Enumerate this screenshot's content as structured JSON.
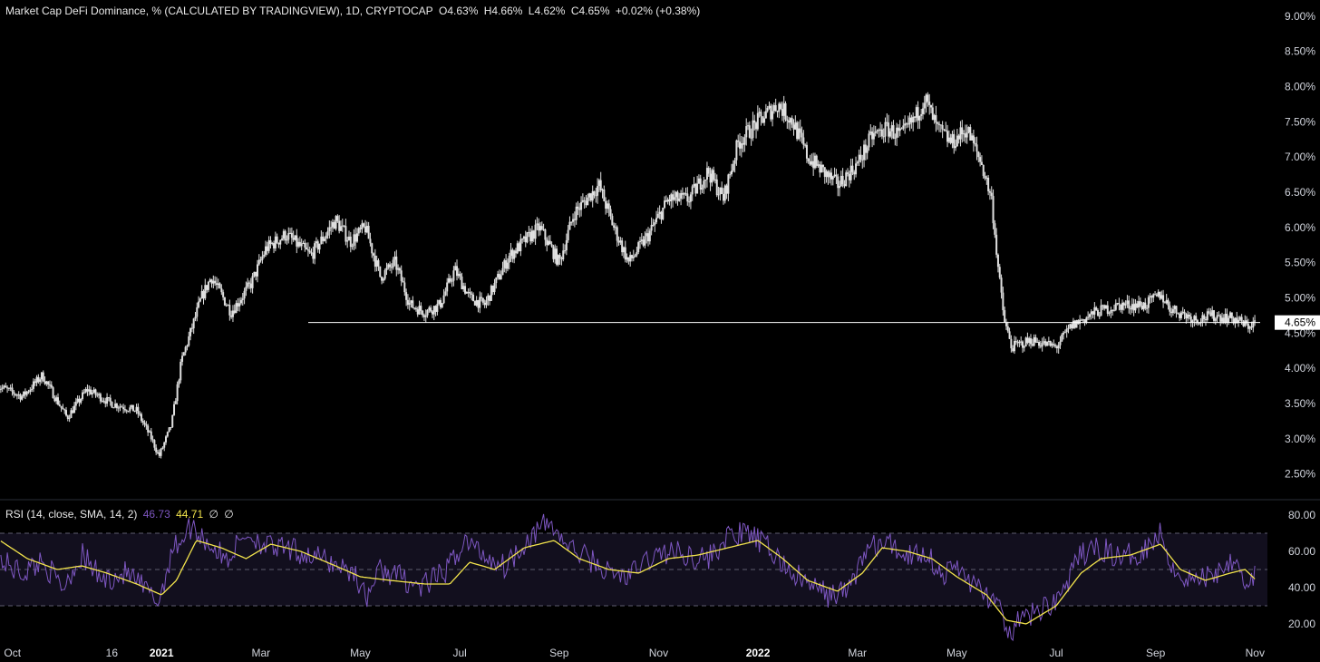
{
  "main_legend": {
    "title": "Market Cap DeFi Dominance, % (CALCULATED BY TRADINGVIEW), 1D, CRYPTOCAP",
    "open": "O4.63%",
    "high": "H4.66%",
    "low": "L4.62%",
    "close": "C4.65%",
    "change": "+0.02% (+0.38%)"
  },
  "rsi_legend": {
    "title": "RSI (14, close, SMA, 14, 2)",
    "rsi": "46.73",
    "sma": "44.71",
    "extra1": "∅",
    "extra2": "∅"
  },
  "colors": {
    "background": "#000000",
    "candles": "#e0e0e0",
    "price_line": "#ffffff",
    "rsi": "#7e57c2",
    "rsi_sma": "#f2e34c",
    "rsi_band": "#120f1e"
  },
  "chart_data": [
    {
      "type": "candlestick",
      "title": "Market Cap DeFi Dominance, %",
      "unit": "%",
      "ylim": [
        2.2,
        9.1
      ],
      "y_ticks": [
        "9.00%",
        "8.50%",
        "8.00%",
        "7.50%",
        "7.00%",
        "6.50%",
        "6.00%",
        "5.50%",
        "5.00%",
        "4.50%",
        "4.00%",
        "3.50%",
        "3.00%",
        "2.50%"
      ],
      "y_tick_values": [
        9.0,
        8.5,
        8.0,
        7.5,
        7.0,
        6.5,
        6.0,
        5.5,
        5.0,
        4.5,
        4.0,
        3.5,
        3.0,
        2.5
      ],
      "last_price": 4.65,
      "last_price_label": "4.65%",
      "x_ticks": [
        "Oct",
        "16",
        "2021",
        "Mar",
        "May",
        "Jul",
        "Sep",
        "Nov",
        "2022",
        "Mar",
        "May",
        "Jul",
        "Sep",
        "Nov"
      ],
      "x_tick_months": [
        0,
        2,
        3,
        5,
        7,
        9,
        11,
        13,
        15,
        17,
        19,
        21,
        23,
        25
      ],
      "x_range_months": [
        -0.25,
        25.25
      ],
      "series_anchors": [
        {
          "x": -2.2,
          "y": 4.0
        },
        {
          "x": -1.6,
          "y": 4.5
        },
        {
          "x": -0.8,
          "y": 3.9
        },
        {
          "x": 0.2,
          "y": 3.6
        },
        {
          "x": 0.6,
          "y": 3.9
        },
        {
          "x": 1.1,
          "y": 3.3
        },
        {
          "x": 1.5,
          "y": 3.7
        },
        {
          "x": 2.0,
          "y": 3.5
        },
        {
          "x": 2.5,
          "y": 3.4
        },
        {
          "x": 2.8,
          "y": 3.0
        },
        {
          "x": 2.95,
          "y": 2.75
        },
        {
          "x": 3.2,
          "y": 3.2
        },
        {
          "x": 3.4,
          "y": 4.1
        },
        {
          "x": 3.8,
          "y": 5.0
        },
        {
          "x": 4.0,
          "y": 5.3
        },
        {
          "x": 4.4,
          "y": 4.8
        },
        {
          "x": 4.8,
          "y": 5.2
        },
        {
          "x": 5.1,
          "y": 5.7
        },
        {
          "x": 5.5,
          "y": 5.9
        },
        {
          "x": 6.0,
          "y": 5.6
        },
        {
          "x": 6.5,
          "y": 6.1
        },
        {
          "x": 6.8,
          "y": 5.8
        },
        {
          "x": 7.1,
          "y": 6.0
        },
        {
          "x": 7.4,
          "y": 5.3
        },
        {
          "x": 7.7,
          "y": 5.5
        },
        {
          "x": 8.0,
          "y": 4.9
        },
        {
          "x": 8.3,
          "y": 4.8
        },
        {
          "x": 8.6,
          "y": 4.9
        },
        {
          "x": 8.9,
          "y": 5.4
        },
        {
          "x": 9.2,
          "y": 5.0
        },
        {
          "x": 9.5,
          "y": 4.9
        },
        {
          "x": 10.0,
          "y": 5.6
        },
        {
          "x": 10.6,
          "y": 6.0
        },
        {
          "x": 11.0,
          "y": 5.5
        },
        {
          "x": 11.3,
          "y": 6.2
        },
        {
          "x": 11.8,
          "y": 6.6
        },
        {
          "x": 12.1,
          "y": 6.0
        },
        {
          "x": 12.4,
          "y": 5.5
        },
        {
          "x": 12.8,
          "y": 5.9
        },
        {
          "x": 13.2,
          "y": 6.4
        },
        {
          "x": 13.6,
          "y": 6.4
        },
        {
          "x": 14.0,
          "y": 6.8
        },
        {
          "x": 14.3,
          "y": 6.4
        },
        {
          "x": 14.6,
          "y": 7.2
        },
        {
          "x": 15.0,
          "y": 7.5
        },
        {
          "x": 15.4,
          "y": 7.75
        },
        {
          "x": 15.7,
          "y": 7.5
        },
        {
          "x": 16.0,
          "y": 7.0
        },
        {
          "x": 16.3,
          "y": 6.8
        },
        {
          "x": 16.6,
          "y": 6.6
        },
        {
          "x": 17.0,
          "y": 6.9
        },
        {
          "x": 17.3,
          "y": 7.3
        },
        {
          "x": 17.6,
          "y": 7.4
        },
        {
          "x": 17.9,
          "y": 7.3
        },
        {
          "x": 18.2,
          "y": 7.6
        },
        {
          "x": 18.35,
          "y": 7.85
        },
        {
          "x": 18.6,
          "y": 7.4
        },
        {
          "x": 18.9,
          "y": 7.2
        },
        {
          "x": 19.2,
          "y": 7.4
        },
        {
          "x": 19.5,
          "y": 6.9
        },
        {
          "x": 19.7,
          "y": 6.4
        },
        {
          "x": 19.85,
          "y": 5.3
        },
        {
          "x": 19.95,
          "y": 4.7
        },
        {
          "x": 20.1,
          "y": 4.3
        },
        {
          "x": 20.5,
          "y": 4.4
        },
        {
          "x": 21.0,
          "y": 4.3
        },
        {
          "x": 21.3,
          "y": 4.6
        },
        {
          "x": 21.8,
          "y": 4.8
        },
        {
          "x": 22.3,
          "y": 4.9
        },
        {
          "x": 22.8,
          "y": 4.9
        },
        {
          "x": 23.1,
          "y": 5.05
        },
        {
          "x": 23.3,
          "y": 4.85
        },
        {
          "x": 23.8,
          "y": 4.7
        },
        {
          "x": 24.2,
          "y": 4.75
        },
        {
          "x": 24.6,
          "y": 4.7
        },
        {
          "x": 24.85,
          "y": 4.6
        },
        {
          "x": 25.0,
          "y": 4.65
        }
      ]
    },
    {
      "type": "line",
      "title": "RSI (14, close, SMA, 14, 2)",
      "ylim": [
        8,
        86
      ],
      "y_ticks": [
        "80.00",
        "60.00",
        "40.00",
        "20.00"
      ],
      "y_tick_values": [
        80,
        60,
        40,
        20
      ],
      "bands": [
        30,
        50,
        70
      ],
      "series": [
        {
          "name": "RSI",
          "last_value": 46.73,
          "anchors": [
            {
              "x": -0.25,
              "y": 55
            },
            {
              "x": 0.2,
              "y": 48
            },
            {
              "x": 0.6,
              "y": 55
            },
            {
              "x": 1.0,
              "y": 40
            },
            {
              "x": 1.4,
              "y": 58
            },
            {
              "x": 1.8,
              "y": 44
            },
            {
              "x": 2.3,
              "y": 48
            },
            {
              "x": 2.7,
              "y": 38
            },
            {
              "x": 2.95,
              "y": 32
            },
            {
              "x": 3.2,
              "y": 60
            },
            {
              "x": 3.6,
              "y": 74
            },
            {
              "x": 3.9,
              "y": 66
            },
            {
              "x": 4.3,
              "y": 55
            },
            {
              "x": 4.7,
              "y": 70
            },
            {
              "x": 5.2,
              "y": 62
            },
            {
              "x": 5.7,
              "y": 60
            },
            {
              "x": 6.2,
              "y": 56
            },
            {
              "x": 6.6,
              "y": 52
            },
            {
              "x": 6.9,
              "y": 48
            },
            {
              "x": 7.1,
              "y": 34
            },
            {
              "x": 7.4,
              "y": 50
            },
            {
              "x": 7.8,
              "y": 46
            },
            {
              "x": 8.2,
              "y": 40
            },
            {
              "x": 8.7,
              "y": 48
            },
            {
              "x": 9.1,
              "y": 66
            },
            {
              "x": 9.5,
              "y": 58
            },
            {
              "x": 9.9,
              "y": 52
            },
            {
              "x": 10.4,
              "y": 68
            },
            {
              "x": 10.8,
              "y": 76
            },
            {
              "x": 11.2,
              "y": 62
            },
            {
              "x": 11.6,
              "y": 56
            },
            {
              "x": 12.0,
              "y": 48
            },
            {
              "x": 12.4,
              "y": 46
            },
            {
              "x": 12.8,
              "y": 56
            },
            {
              "x": 13.2,
              "y": 60
            },
            {
              "x": 13.6,
              "y": 58
            },
            {
              "x": 14.0,
              "y": 56
            },
            {
              "x": 14.4,
              "y": 68
            },
            {
              "x": 14.8,
              "y": 70
            },
            {
              "x": 15.2,
              "y": 62
            },
            {
              "x": 15.6,
              "y": 50
            },
            {
              "x": 16.0,
              "y": 42
            },
            {
              "x": 16.4,
              "y": 36
            },
            {
              "x": 16.8,
              "y": 38
            },
            {
              "x": 17.2,
              "y": 62
            },
            {
              "x": 17.6,
              "y": 64
            },
            {
              "x": 18.0,
              "y": 58
            },
            {
              "x": 18.4,
              "y": 60
            },
            {
              "x": 18.7,
              "y": 46
            },
            {
              "x": 19.0,
              "y": 52
            },
            {
              "x": 19.4,
              "y": 40
            },
            {
              "x": 19.8,
              "y": 32
            },
            {
              "x": 20.0,
              "y": 14
            },
            {
              "x": 20.3,
              "y": 22
            },
            {
              "x": 20.7,
              "y": 28
            },
            {
              "x": 21.1,
              "y": 36
            },
            {
              "x": 21.5,
              "y": 58
            },
            {
              "x": 21.9,
              "y": 62
            },
            {
              "x": 22.3,
              "y": 56
            },
            {
              "x": 22.7,
              "y": 60
            },
            {
              "x": 23.1,
              "y": 70
            },
            {
              "x": 23.4,
              "y": 48
            },
            {
              "x": 23.8,
              "y": 44
            },
            {
              "x": 24.2,
              "y": 48
            },
            {
              "x": 24.6,
              "y": 58
            },
            {
              "x": 24.85,
              "y": 40
            },
            {
              "x": 25.0,
              "y": 46.73
            }
          ]
        },
        {
          "name": "SMA",
          "last_value": 44.71,
          "anchors": [
            {
              "x": -0.25,
              "y": 66
            },
            {
              "x": 0.3,
              "y": 56
            },
            {
              "x": 0.9,
              "y": 50
            },
            {
              "x": 1.4,
              "y": 52
            },
            {
              "x": 1.9,
              "y": 48
            },
            {
              "x": 2.5,
              "y": 42
            },
            {
              "x": 3.0,
              "y": 36
            },
            {
              "x": 3.3,
              "y": 44
            },
            {
              "x": 3.7,
              "y": 66
            },
            {
              "x": 4.2,
              "y": 62
            },
            {
              "x": 4.7,
              "y": 56
            },
            {
              "x": 5.2,
              "y": 64
            },
            {
              "x": 5.8,
              "y": 60
            },
            {
              "x": 6.5,
              "y": 52
            },
            {
              "x": 7.0,
              "y": 46
            },
            {
              "x": 7.6,
              "y": 44
            },
            {
              "x": 8.3,
              "y": 42
            },
            {
              "x": 8.8,
              "y": 42
            },
            {
              "x": 9.2,
              "y": 54
            },
            {
              "x": 9.7,
              "y": 50
            },
            {
              "x": 10.3,
              "y": 62
            },
            {
              "x": 10.9,
              "y": 66
            },
            {
              "x": 11.4,
              "y": 56
            },
            {
              "x": 12.0,
              "y": 50
            },
            {
              "x": 12.6,
              "y": 48
            },
            {
              "x": 13.2,
              "y": 56
            },
            {
              "x": 13.8,
              "y": 58
            },
            {
              "x": 14.4,
              "y": 62
            },
            {
              "x": 15.0,
              "y": 66
            },
            {
              "x": 15.5,
              "y": 56
            },
            {
              "x": 16.0,
              "y": 44
            },
            {
              "x": 16.6,
              "y": 38
            },
            {
              "x": 17.1,
              "y": 48
            },
            {
              "x": 17.5,
              "y": 62
            },
            {
              "x": 18.0,
              "y": 60
            },
            {
              "x": 18.5,
              "y": 56
            },
            {
              "x": 19.0,
              "y": 46
            },
            {
              "x": 19.6,
              "y": 36
            },
            {
              "x": 20.0,
              "y": 22
            },
            {
              "x": 20.4,
              "y": 20
            },
            {
              "x": 21.0,
              "y": 30
            },
            {
              "x": 21.5,
              "y": 48
            },
            {
              "x": 21.9,
              "y": 56
            },
            {
              "x": 22.5,
              "y": 58
            },
            {
              "x": 23.1,
              "y": 64
            },
            {
              "x": 23.5,
              "y": 50
            },
            {
              "x": 24.0,
              "y": 44
            },
            {
              "x": 24.5,
              "y": 48
            },
            {
              "x": 24.8,
              "y": 50
            },
            {
              "x": 25.0,
              "y": 44.71
            }
          ]
        }
      ]
    }
  ]
}
